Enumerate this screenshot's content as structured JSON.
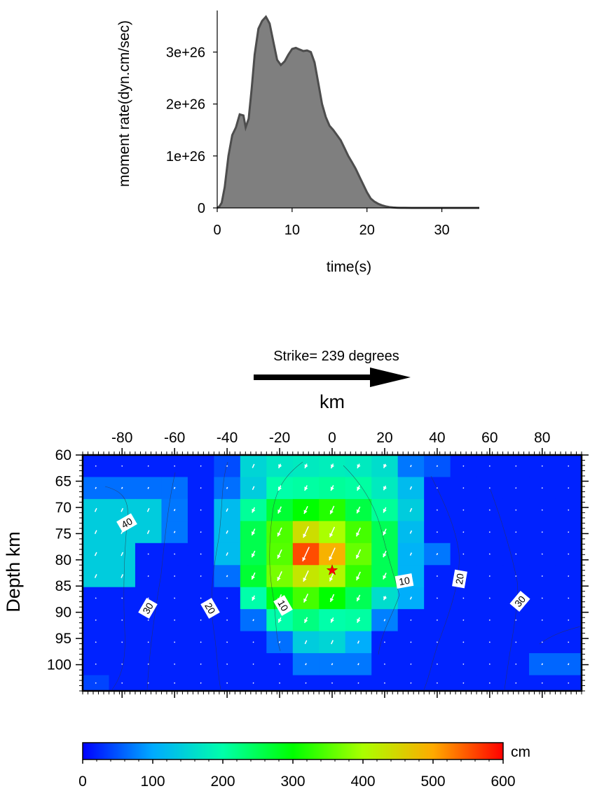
{
  "chart_data": [
    {
      "type": "area",
      "xlabel": "time(s)",
      "ylabel": "moment rate(dyn.cm/sec)",
      "xlim": [
        0,
        35
      ],
      "ylim": [
        0,
        3.8e+26
      ],
      "xticks": [
        0,
        10,
        20,
        30
      ],
      "yticks": [
        0,
        1e+26,
        2e+26,
        3e+26
      ],
      "xtick_labels": [
        "0",
        "10",
        "20",
        "30"
      ],
      "ytick_labels": [
        "0",
        "1e+26",
        "2e+26",
        "3e+26"
      ],
      "fill_color": "#7f7f7f",
      "line_color": "#4d4d4d",
      "x": [
        0,
        0.3,
        0.6,
        1.0,
        1.5,
        2.0,
        2.5,
        3.0,
        3.5,
        3.8,
        4.2,
        4.6,
        5.0,
        5.5,
        6.0,
        6.5,
        7.0,
        7.5,
        8.0,
        8.5,
        9.0,
        9.5,
        10.0,
        10.5,
        11.0,
        11.5,
        12.0,
        12.5,
        13.0,
        13.5,
        14.0,
        14.5,
        15.0,
        15.5,
        16.0,
        16.5,
        17.0,
        17.5,
        18.0,
        18.5,
        19.0,
        19.5,
        20.0,
        20.5,
        21.0,
        21.5,
        22.0,
        22.5,
        23.0,
        23.5,
        24.0,
        24.5,
        25.0,
        26.0,
        28.0,
        30.0,
        32.0,
        34.0,
        35.0
      ],
      "y": [
        0,
        3e+24,
        1e+25,
        4e+25,
        1e+26,
        1.4e+26,
        1.55e+26,
        1.8e+26,
        1.78e+26,
        1.55e+26,
        1.72e+26,
        2.3e+26,
        2.95e+26,
        3.45e+26,
        3.6e+26,
        3.68e+26,
        3.55e+26,
        3.2e+26,
        2.85e+26,
        2.75e+26,
        2.82e+26,
        2.95e+26,
        3.06e+26,
        3.08e+26,
        3.05e+26,
        3.02e+26,
        3.03e+26,
        3e+26,
        2.8e+26,
        2.4e+26,
        2e+26,
        1.75e+26,
        1.58e+26,
        1.5e+26,
        1.4e+26,
        1.3e+26,
        1.15e+26,
        1e+26,
        8.8e+25,
        7.5e+25,
        6e+25,
        4.5e+25,
        3e+25,
        1.8e+25,
        1.2e+25,
        8e+24,
        5e+24,
        3e+24,
        1.5e+24,
        8e+23,
        4e+23,
        2e+23,
        1e+23,
        0,
        0,
        0,
        0,
        0,
        0
      ]
    },
    {
      "type": "heatmap",
      "title": "Strike= 239 degrees",
      "xlabel": "km",
      "ylabel": "Depth km",
      "xlim": [
        -95,
        95
      ],
      "ylim": [
        105,
        60
      ],
      "xticks": [
        -80,
        -60,
        -40,
        -20,
        0,
        20,
        40,
        60,
        80
      ],
      "xtick_labels": [
        "-80",
        "-60",
        "-40",
        "-20",
        "0",
        "20",
        "40",
        "60",
        "80"
      ],
      "yticks": [
        60,
        65,
        70,
        75,
        80,
        85,
        90,
        95,
        100
      ],
      "ytick_labels": [
        "60",
        "65",
        "70",
        "75",
        "80",
        "85",
        "90",
        "95",
        "100"
      ],
      "x_edges": [
        -95,
        -85,
        -75,
        -65,
        -55,
        -45,
        -35,
        -25,
        -15,
        -5,
        5,
        15,
        25,
        35,
        45,
        55,
        65,
        75,
        85,
        95
      ],
      "y_edges": [
        60,
        64.2,
        68.4,
        72.6,
        76.8,
        81,
        85.2,
        89.4,
        93.6,
        97.8,
        102,
        105
      ],
      "slip_cm": [
        [
          20,
          20,
          20,
          20,
          20,
          45,
          150,
          170,
          175,
          180,
          175,
          160,
          70,
          50,
          20,
          20,
          20,
          20,
          20
        ],
        [
          65,
          65,
          65,
          65,
          20,
          65,
          140,
          200,
          205,
          210,
          205,
          175,
          120,
          20,
          20,
          20,
          20,
          20,
          20
        ],
        [
          140,
          140,
          140,
          70,
          20,
          120,
          210,
          270,
          300,
          320,
          260,
          210,
          140,
          20,
          20,
          20,
          20,
          20,
          20
        ],
        [
          140,
          140,
          140,
          70,
          20,
          120,
          255,
          345,
          440,
          400,
          340,
          250,
          120,
          20,
          20,
          20,
          20,
          20,
          20
        ],
        [
          140,
          140,
          20,
          20,
          20,
          120,
          255,
          350,
          555,
          490,
          360,
          250,
          110,
          70,
          20,
          20,
          20,
          20,
          20
        ],
        [
          140,
          140,
          20,
          20,
          20,
          65,
          270,
          370,
          430,
          410,
          330,
          250,
          110,
          20,
          20,
          20,
          20,
          20,
          20
        ],
        [
          20,
          20,
          20,
          20,
          20,
          20,
          200,
          290,
          340,
          300,
          250,
          160,
          105,
          20,
          20,
          20,
          20,
          20,
          20
        ],
        [
          20,
          20,
          20,
          20,
          20,
          20,
          65,
          200,
          225,
          200,
          205,
          75,
          20,
          20,
          20,
          20,
          20,
          20,
          20
        ],
        [
          20,
          20,
          20,
          20,
          20,
          20,
          20,
          65,
          140,
          150,
          105,
          20,
          20,
          20,
          20,
          20,
          20,
          20,
          20
        ],
        [
          20,
          20,
          20,
          20,
          20,
          20,
          20,
          20,
          70,
          70,
          70,
          20,
          20,
          20,
          20,
          20,
          20,
          60,
          60
        ],
        [
          40,
          20,
          20,
          20,
          20,
          20,
          20,
          20,
          20,
          20,
          20,
          20,
          20,
          20,
          20,
          20,
          20,
          20,
          20
        ]
      ],
      "hypocenter": {
        "x": 0,
        "y": 82
      },
      "contour_labels": [
        "40",
        "30",
        "20",
        "10",
        "10",
        "20",
        "30"
      ],
      "colorbar": {
        "label": "cm",
        "min": 0,
        "max": 600,
        "ticks": [
          0,
          100,
          200,
          300,
          400,
          500,
          600
        ],
        "tick_labels": [
          "0",
          "100",
          "200",
          "300",
          "400",
          "500",
          "600"
        ],
        "colors": [
          "#0000ff",
          "#00aaff",
          "#00ffaa",
          "#00ff00",
          "#aaff00",
          "#ffaa00",
          "#ff0000"
        ]
      }
    }
  ]
}
